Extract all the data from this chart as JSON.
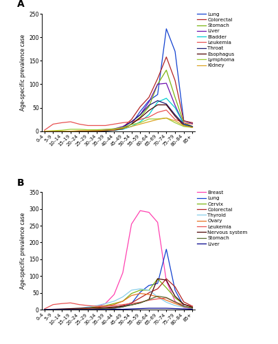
{
  "age_labels": [
    "0–4",
    "5–9",
    "10–14",
    "15–19",
    "20–24",
    "25–29",
    "30–34",
    "35–39",
    "40–44",
    "45–49",
    "50–54",
    "55–59",
    "60–64",
    "65–69",
    "70–74",
    "75–79",
    "80–84",
    "85+"
  ],
  "panel_A": {
    "title": "A",
    "ylabel": "Age-specific prevalence case",
    "ylim": [
      0,
      250
    ],
    "yticks": [
      0,
      50,
      100,
      150,
      200,
      250
    ],
    "series": [
      {
        "label": "Lung",
        "color": "#1040d0",
        "data": [
          0,
          0,
          0,
          0,
          0,
          0,
          0,
          1,
          2,
          5,
          15,
          42,
          65,
          78,
          218,
          170,
          22,
          16
        ]
      },
      {
        "label": "Colorectal",
        "color": "#b22222",
        "data": [
          0,
          0,
          0,
          0,
          0,
          0,
          1,
          2,
          4,
          8,
          25,
          52,
          72,
          112,
          158,
          108,
          22,
          18
        ]
      },
      {
        "label": "Stomach",
        "color": "#7ab510",
        "data": [
          0,
          0,
          0,
          0,
          0,
          0,
          1,
          1,
          3,
          6,
          15,
          30,
          52,
          100,
          130,
          72,
          18,
          10
        ]
      },
      {
        "label": "Liver",
        "color": "#6a0dad",
        "data": [
          0,
          0,
          0,
          0,
          0,
          0,
          1,
          3,
          5,
          10,
          20,
          35,
          62,
          100,
          102,
          55,
          15,
          8
        ]
      },
      {
        "label": "Bladder",
        "color": "#00ced1",
        "data": [
          0,
          0,
          0,
          0,
          0,
          0,
          0,
          1,
          2,
          4,
          10,
          20,
          35,
          62,
          70,
          50,
          15,
          8
        ]
      },
      {
        "label": "Leukemia",
        "color": "#e85050",
        "data": [
          2,
          15,
          18,
          20,
          15,
          12,
          12,
          12,
          15,
          18,
          20,
          25,
          30,
          40,
          45,
          25,
          18,
          15
        ]
      },
      {
        "label": "Throat",
        "color": "#191970",
        "data": [
          0,
          0,
          0,
          0,
          0,
          0,
          0,
          1,
          3,
          8,
          20,
          35,
          55,
          65,
          58,
          35,
          15,
          10
        ]
      },
      {
        "label": "Esophagus",
        "color": "#4a0000",
        "data": [
          0,
          0,
          0,
          0,
          0,
          0,
          0,
          1,
          2,
          5,
          15,
          28,
          44,
          56,
          56,
          32,
          12,
          8
        ]
      },
      {
        "label": "Lymphoma",
        "color": "#9acd32",
        "data": [
          0,
          1,
          2,
          4,
          4,
          3,
          3,
          4,
          5,
          8,
          14,
          18,
          26,
          26,
          28,
          18,
          10,
          8
        ]
      },
      {
        "label": "Kidney",
        "color": "#daa520",
        "data": [
          0,
          0,
          0,
          0,
          1,
          1,
          1,
          2,
          3,
          6,
          10,
          15,
          20,
          25,
          28,
          22,
          12,
          8
        ]
      }
    ]
  },
  "panel_B": {
    "title": "B",
    "ylabel": "Age-specific prevalence case",
    "ylim": [
      0,
      350
    ],
    "yticks": [
      0,
      50,
      100,
      150,
      200,
      250,
      300,
      350
    ],
    "series": [
      {
        "label": "Breast",
        "color": "#ff40b0",
        "data": [
          0,
          0,
          0,
          0,
          1,
          3,
          8,
          18,
          45,
          110,
          255,
          295,
          290,
          260,
          85,
          25,
          6,
          2
        ]
      },
      {
        "label": "Lung",
        "color": "#1040d0",
        "data": [
          0,
          0,
          0,
          0,
          0,
          0,
          1,
          2,
          4,
          8,
          18,
          52,
          72,
          78,
          180,
          58,
          10,
          4
        ]
      },
      {
        "label": "Cervix",
        "color": "#7ab510",
        "data": [
          0,
          0,
          0,
          1,
          2,
          5,
          8,
          12,
          18,
          25,
          48,
          58,
          58,
          92,
          65,
          35,
          16,
          7
        ]
      },
      {
        "label": "Colorectal",
        "color": "#b22222",
        "data": [
          0,
          0,
          0,
          0,
          0,
          1,
          2,
          4,
          6,
          12,
          20,
          35,
          50,
          62,
          92,
          68,
          23,
          10
        ]
      },
      {
        "label": "Thyroid",
        "color": "#87ceeb",
        "data": [
          0,
          0,
          1,
          2,
          4,
          8,
          12,
          18,
          25,
          38,
          58,
          62,
          58,
          38,
          22,
          12,
          7,
          3
        ]
      },
      {
        "label": "Ovary",
        "color": "#e87020",
        "data": [
          0,
          0,
          0,
          1,
          2,
          4,
          6,
          10,
          15,
          25,
          42,
          48,
          45,
          38,
          28,
          18,
          9,
          4
        ]
      },
      {
        "label": "Leukemia",
        "color": "#e85050",
        "data": [
          2,
          15,
          18,
          20,
          15,
          12,
          10,
          10,
          12,
          15,
          18,
          22,
          28,
          32,
          35,
          22,
          15,
          10
        ]
      },
      {
        "label": "Nervous system",
        "color": "#4a0000",
        "data": [
          0,
          1,
          2,
          3,
          4,
          5,
          5,
          6,
          8,
          10,
          14,
          20,
          30,
          92,
          88,
          40,
          16,
          7
        ]
      },
      {
        "label": "Stomach",
        "color": "#556b2f",
        "data": [
          0,
          0,
          0,
          0,
          0,
          1,
          2,
          3,
          4,
          8,
          14,
          20,
          30,
          40,
          36,
          23,
          10,
          5
        ]
      },
      {
        "label": "Liver",
        "color": "#00008b",
        "data": [
          0,
          0,
          0,
          0,
          0,
          0,
          0,
          0,
          1,
          1,
          2,
          3,
          4,
          4,
          4,
          3,
          2,
          1
        ]
      }
    ]
  }
}
